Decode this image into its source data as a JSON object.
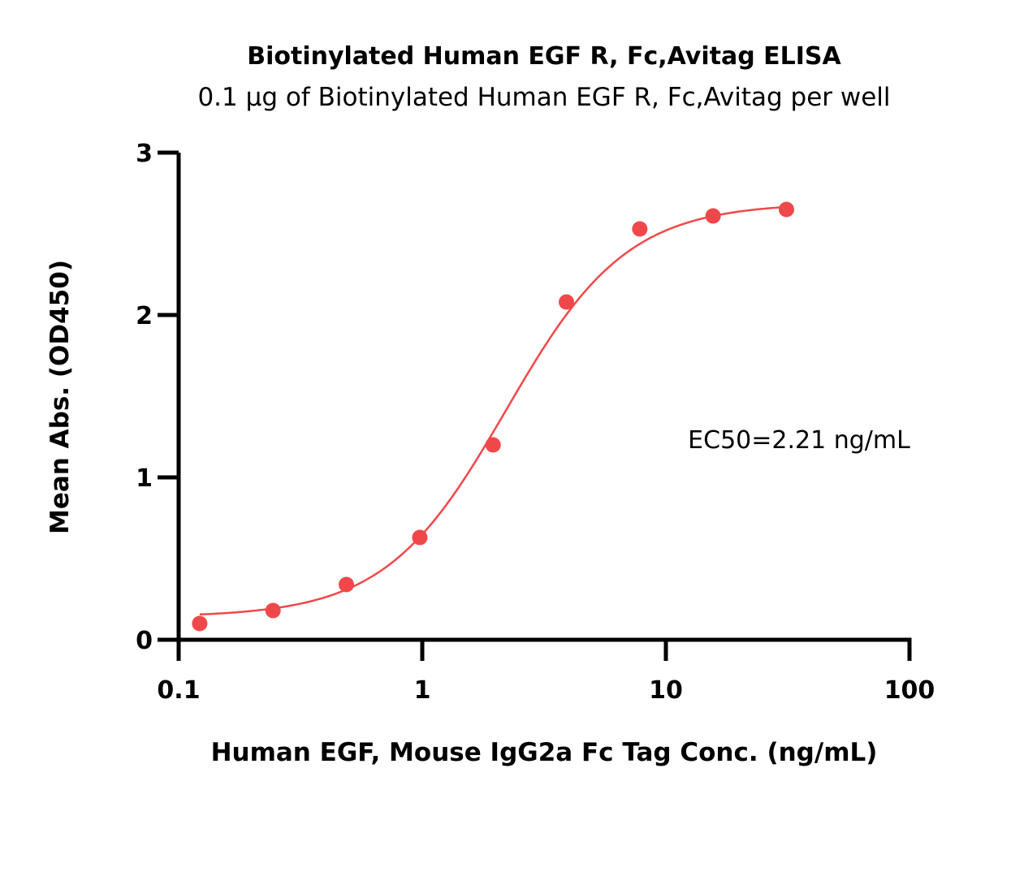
{
  "chart_data": {
    "type": "scatter",
    "title": "Biotinylated Human EGF R, Fc,Avitag ELISA",
    "subtitle": "0.1 µg of Biotinylated Human EGF R, Fc,Avitag per well",
    "xlabel": "Human EGF, Mouse IgG2a Fc Tag Conc. (ng/mL)",
    "ylabel": "Mean Abs. (OD450)",
    "xscale": "log",
    "xlim": [
      0.1,
      100
    ],
    "ylim": [
      0,
      3
    ],
    "xticks": [
      {
        "value": 0.1,
        "label": "0.1"
      },
      {
        "value": 1,
        "label": "1"
      },
      {
        "value": 10,
        "label": "10"
      },
      {
        "value": 100,
        "label": "100"
      }
    ],
    "yticks": [
      {
        "value": 0,
        "label": "0"
      },
      {
        "value": 1,
        "label": "1"
      },
      {
        "value": 2,
        "label": "2"
      },
      {
        "value": 3,
        "label": "3"
      }
    ],
    "grid": false,
    "series": [
      {
        "color": "#f0484a",
        "x": [
          0.122,
          0.244,
          0.488,
          0.977,
          1.953,
          3.906,
          7.813,
          15.625,
          31.25
        ],
        "y": [
          0.1,
          0.18,
          0.34,
          0.63,
          1.2,
          2.08,
          2.53,
          2.61,
          2.65
        ],
        "fit": "four-parameter logistic"
      }
    ],
    "annotations": [
      {
        "text": "EC50=2.21 ng/mL"
      }
    ]
  }
}
